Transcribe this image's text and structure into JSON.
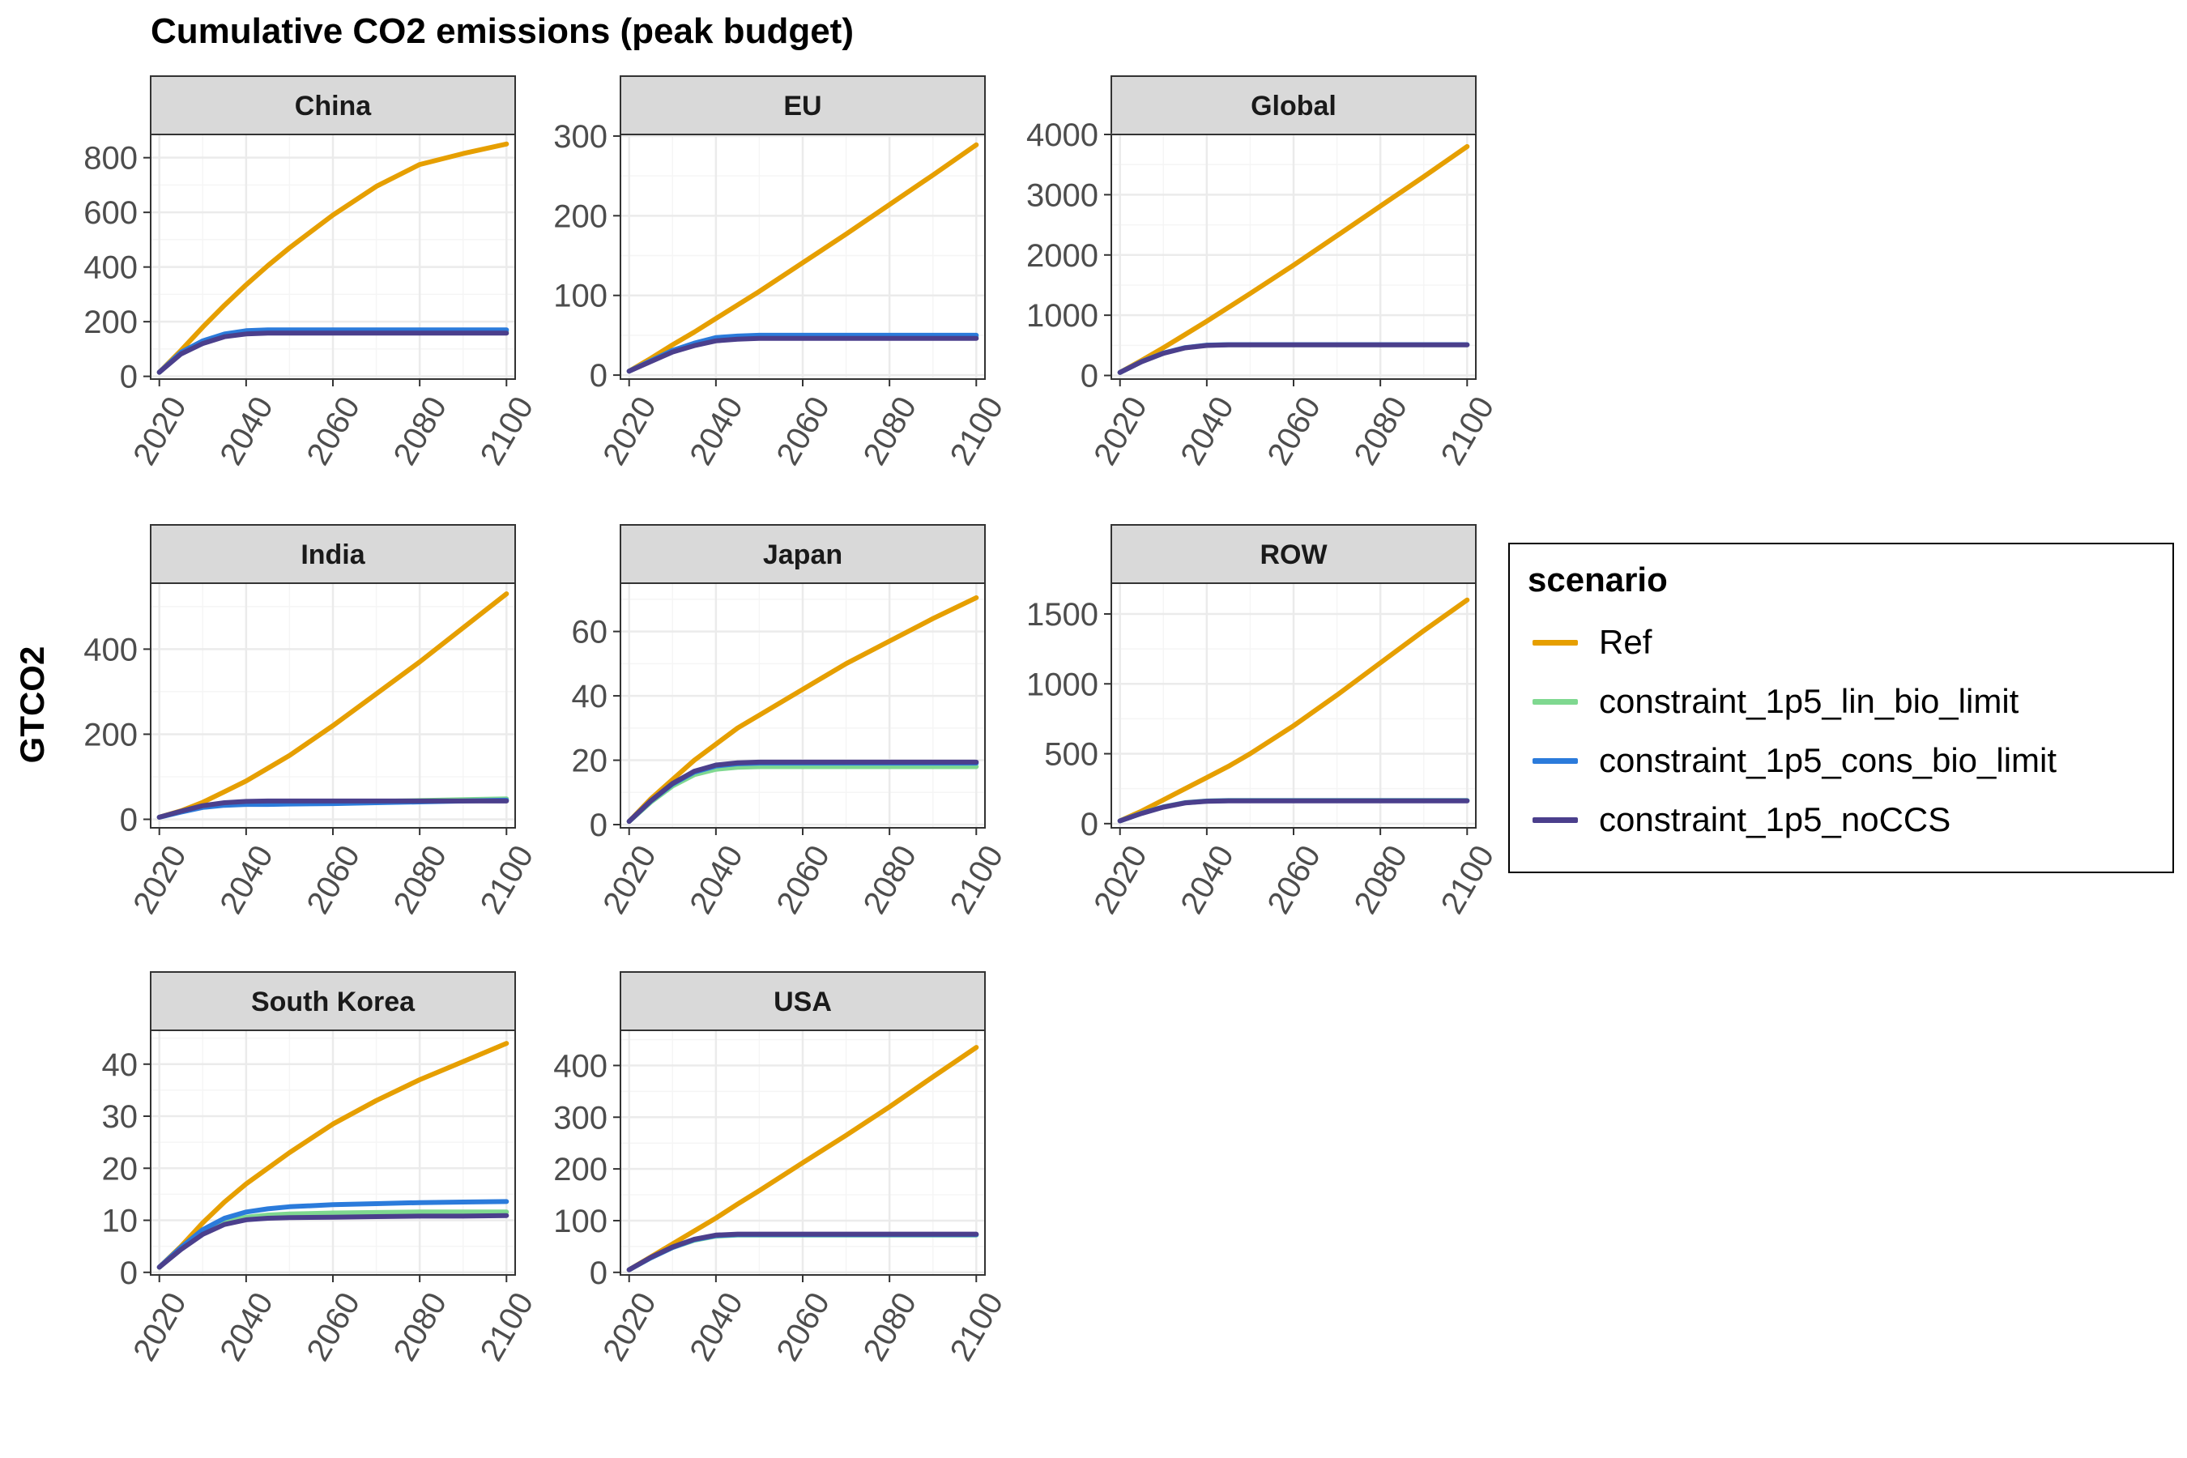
{
  "figure": {
    "title": "Cumulative CO2 emissions (peak budget)",
    "ylabel": "GTCO2",
    "legend_title": "scenario"
  },
  "scenarios": [
    {
      "key": "Ref",
      "name": "Ref",
      "color": "#E69F00"
    },
    {
      "key": "lin",
      "name": "constraint_1p5_lin_bio_limit",
      "color": "#7FD890"
    },
    {
      "key": "cons",
      "name": "constraint_1p5_cons_bio_limit",
      "color": "#2B7BDB"
    },
    {
      "key": "noCCS",
      "name": "constraint_1p5_noCCS",
      "color": "#4B3F8C"
    }
  ],
  "colors": {
    "strip_fill": "#D9D9D9",
    "panel_border": "#333333",
    "grid_major": "#EBEBEB",
    "grid_minor": "#F5F5F5",
    "tick_label": "#4D4D4D"
  },
  "chart_data": [
    {
      "type": "line",
      "title": "China",
      "x": [
        2020,
        2025,
        2030,
        2035,
        2040,
        2045,
        2050,
        2060,
        2070,
        2080,
        2090,
        2100
      ],
      "xlim": [
        2018,
        2102
      ],
      "ylim": [
        -10,
        885
      ],
      "xticks": [
        2020,
        2040,
        2060,
        2080,
        2100
      ],
      "yticks": [
        0,
        200,
        400,
        600,
        800
      ],
      "series": [
        {
          "name": "Ref",
          "values": [
            15,
            95,
            180,
            260,
            335,
            405,
            470,
            590,
            695,
            775,
            815,
            850
          ]
        },
        {
          "name": "constraint_1p5_lin_bio_limit",
          "values": [
            15,
            85,
            125,
            150,
            162,
            165,
            165,
            165,
            165,
            165,
            165,
            165
          ]
        },
        {
          "name": "constraint_1p5_cons_bio_limit",
          "values": [
            15,
            88,
            130,
            155,
            167,
            170,
            170,
            170,
            170,
            170,
            170,
            170
          ]
        },
        {
          "name": "constraint_1p5_noCCS",
          "values": [
            15,
            82,
            120,
            145,
            155,
            158,
            158,
            158,
            158,
            158,
            158,
            158
          ]
        }
      ]
    },
    {
      "type": "line",
      "title": "EU",
      "x": [
        2020,
        2025,
        2030,
        2035,
        2040,
        2045,
        2050,
        2060,
        2070,
        2080,
        2090,
        2100
      ],
      "xlim": [
        2018,
        2102
      ],
      "ylim": [
        -5,
        302
      ],
      "xticks": [
        2020,
        2040,
        2060,
        2080,
        2100
      ],
      "yticks": [
        0,
        100,
        200,
        300
      ],
      "series": [
        {
          "name": "Ref",
          "values": [
            5,
            21,
            38,
            54,
            71,
            88,
            105,
            141,
            177,
            214,
            251,
            289
          ]
        },
        {
          "name": "constraint_1p5_lin_bio_limit",
          "values": [
            5,
            18,
            30,
            39,
            45,
            47,
            48,
            48,
            48,
            48,
            48,
            48
          ]
        },
        {
          "name": "constraint_1p5_cons_bio_limit",
          "values": [
            5,
            18,
            31,
            40,
            47,
            49,
            50,
            50,
            50,
            50,
            50,
            50
          ]
        },
        {
          "name": "constraint_1p5_noCCS",
          "values": [
            5,
            17,
            29,
            37,
            43,
            45,
            46,
            46,
            46,
            46,
            46,
            46
          ]
        }
      ]
    },
    {
      "type": "line",
      "title": "Global",
      "x": [
        2020,
        2025,
        2030,
        2035,
        2040,
        2045,
        2050,
        2060,
        2070,
        2080,
        2090,
        2100
      ],
      "xlim": [
        2018,
        2102
      ],
      "ylim": [
        -60,
        4000
      ],
      "xticks": [
        2020,
        2040,
        2060,
        2080,
        2100
      ],
      "yticks": [
        0,
        1000,
        2000,
        3000,
        4000
      ],
      "series": [
        {
          "name": "Ref",
          "values": [
            50,
            250,
            460,
            680,
            900,
            1130,
            1360,
            1830,
            2320,
            2810,
            3300,
            3800
          ]
        },
        {
          "name": "constraint_1p5_lin_bio_limit",
          "values": [
            50,
            230,
            370,
            460,
            500,
            510,
            510,
            510,
            510,
            510,
            510,
            510
          ]
        },
        {
          "name": "constraint_1p5_cons_bio_limit",
          "values": [
            50,
            232,
            372,
            462,
            503,
            512,
            512,
            512,
            512,
            512,
            512,
            512
          ]
        },
        {
          "name": "constraint_1p5_noCCS",
          "values": [
            50,
            228,
            368,
            458,
            498,
            507,
            507,
            507,
            507,
            507,
            507,
            507
          ]
        }
      ]
    },
    {
      "type": "line",
      "title": "India",
      "x": [
        2020,
        2025,
        2030,
        2035,
        2040,
        2045,
        2050,
        2060,
        2070,
        2080,
        2090,
        2100
      ],
      "xlim": [
        2018,
        2102
      ],
      "ylim": [
        -20,
        555
      ],
      "xticks": [
        2020,
        2040,
        2060,
        2080,
        2100
      ],
      "yticks": [
        0,
        200,
        400
      ],
      "series": [
        {
          "name": "Ref",
          "values": [
            5,
            20,
            40,
            65,
            90,
            120,
            150,
            220,
            295,
            370,
            450,
            530
          ]
        },
        {
          "name": "constraint_1p5_lin_bio_limit",
          "values": [
            5,
            18,
            30,
            36,
            38,
            38,
            39,
            40,
            42,
            44,
            46,
            48
          ]
        },
        {
          "name": "constraint_1p5_cons_bio_limit",
          "values": [
            5,
            17,
            28,
            33,
            35,
            35,
            36,
            37,
            39,
            41,
            43,
            45
          ]
        },
        {
          "name": "constraint_1p5_noCCS",
          "values": [
            5,
            19,
            32,
            39,
            42,
            43,
            43,
            43,
            43,
            43,
            43,
            43
          ]
        }
      ]
    },
    {
      "type": "line",
      "title": "Japan",
      "x": [
        2020,
        2025,
        2030,
        2035,
        2040,
        2045,
        2050,
        2060,
        2070,
        2080,
        2090,
        2100
      ],
      "xlim": [
        2018,
        2102
      ],
      "ylim": [
        -1,
        75
      ],
      "xticks": [
        2020,
        2040,
        2060,
        2080,
        2100
      ],
      "yticks": [
        0,
        20,
        40,
        60
      ],
      "series": [
        {
          "name": "Ref",
          "values": [
            1,
            8,
            14,
            20,
            25,
            30,
            34,
            42,
            50,
            57,
            64,
            70.5
          ]
        },
        {
          "name": "constraint_1p5_lin_bio_limit",
          "values": [
            1,
            7,
            12,
            15.5,
            17.2,
            17.8,
            18,
            18,
            18,
            18,
            18,
            18
          ]
        },
        {
          "name": "constraint_1p5_cons_bio_limit",
          "values": [
            1,
            7.3,
            12.6,
            16.3,
            18.2,
            18.9,
            19.1,
            19.1,
            19.1,
            19.1,
            19.1,
            19.1
          ]
        },
        {
          "name": "constraint_1p5_noCCS",
          "values": [
            1,
            7.4,
            12.8,
            16.6,
            18.5,
            19.2,
            19.4,
            19.4,
            19.4,
            19.4,
            19.4,
            19.4
          ]
        }
      ]
    },
    {
      "type": "line",
      "title": "ROW",
      "x": [
        2020,
        2025,
        2030,
        2035,
        2040,
        2045,
        2050,
        2060,
        2070,
        2080,
        2090,
        2100
      ],
      "xlim": [
        2018,
        2102
      ],
      "ylim": [
        -30,
        1720
      ],
      "xticks": [
        2020,
        2040,
        2060,
        2080,
        2100
      ],
      "yticks": [
        0,
        500,
        1000,
        1500
      ],
      "series": [
        {
          "name": "Ref",
          "values": [
            20,
            90,
            170,
            250,
            330,
            410,
            500,
            700,
            920,
            1150,
            1380,
            1600
          ]
        },
        {
          "name": "constraint_1p5_lin_bio_limit",
          "values": [
            20,
            75,
            120,
            150,
            162,
            165,
            165,
            165,
            165,
            165,
            165,
            165
          ]
        },
        {
          "name": "constraint_1p5_cons_bio_limit",
          "values": [
            20,
            74,
            119,
            149,
            161,
            164,
            164,
            164,
            164,
            164,
            164,
            164
          ]
        },
        {
          "name": "constraint_1p5_noCCS",
          "values": [
            20,
            73,
            118,
            148,
            160,
            163,
            163,
            163,
            163,
            163,
            163,
            163
          ]
        }
      ]
    },
    {
      "type": "line",
      "title": "South Korea",
      "x": [
        2020,
        2025,
        2030,
        2035,
        2040,
        2045,
        2050,
        2060,
        2070,
        2080,
        2090,
        2100
      ],
      "xlim": [
        2018,
        2102
      ],
      "ylim": [
        -0.5,
        46.5
      ],
      "xticks": [
        2020,
        2040,
        2060,
        2080,
        2100
      ],
      "yticks": [
        0,
        10,
        20,
        30,
        40
      ],
      "series": [
        {
          "name": "Ref",
          "values": [
            1,
            5,
            9.5,
            13.5,
            17,
            20,
            23,
            28.5,
            33,
            37,
            40.5,
            44
          ]
        },
        {
          "name": "constraint_1p5_lin_bio_limit",
          "values": [
            1,
            4.5,
            7.5,
            9.6,
            10.6,
            11,
            11.2,
            11.4,
            11.5,
            11.6,
            11.6,
            11.6
          ]
        },
        {
          "name": "constraint_1p5_cons_bio_limit",
          "values": [
            1,
            4.8,
            8.2,
            10.4,
            11.6,
            12.2,
            12.6,
            13,
            13.2,
            13.4,
            13.5,
            13.6
          ]
        },
        {
          "name": "constraint_1p5_noCCS",
          "values": [
            1,
            4.4,
            7.3,
            9.2,
            10.1,
            10.4,
            10.5,
            10.6,
            10.7,
            10.8,
            10.8,
            10.9
          ]
        }
      ]
    },
    {
      "type": "line",
      "title": "USA",
      "x": [
        2020,
        2025,
        2030,
        2035,
        2040,
        2045,
        2050,
        2060,
        2070,
        2080,
        2090,
        2100
      ],
      "xlim": [
        2018,
        2102
      ],
      "ylim": [
        -5,
        468
      ],
      "xticks": [
        2020,
        2040,
        2060,
        2080,
        2100
      ],
      "yticks": [
        0,
        100,
        200,
        300,
        400
      ],
      "series": [
        {
          "name": "Ref",
          "values": [
            5,
            30,
            55,
            80,
            105,
            132,
            158,
            212,
            265,
            320,
            378,
            435
          ]
        },
        {
          "name": "constraint_1p5_lin_bio_limit",
          "values": [
            5,
            28,
            48,
            62,
            70,
            72,
            72,
            72,
            72,
            72,
            72,
            72
          ]
        },
        {
          "name": "constraint_1p5_cons_bio_limit",
          "values": [
            5,
            28,
            48,
            63,
            71,
            73,
            73,
            73,
            73,
            73,
            73,
            73
          ]
        },
        {
          "name": "constraint_1p5_noCCS",
          "values": [
            5,
            29,
            49,
            64,
            72,
            74,
            74,
            74,
            74,
            74,
            74,
            74
          ]
        }
      ]
    }
  ]
}
